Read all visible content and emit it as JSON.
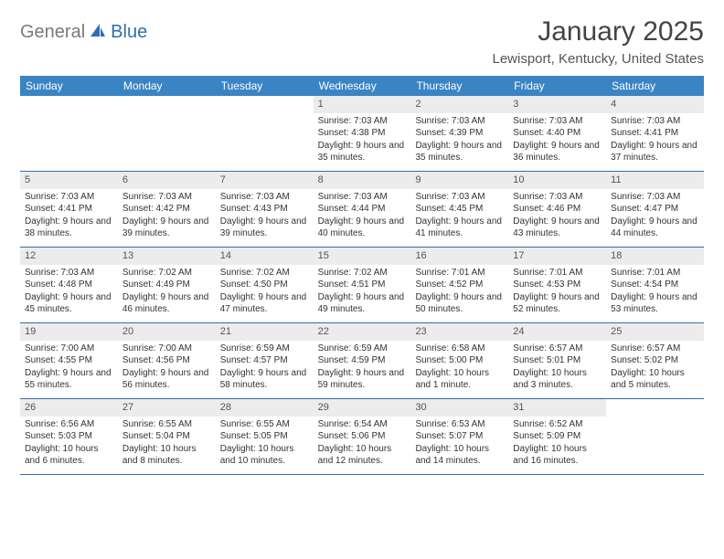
{
  "logo": {
    "part1": "General",
    "part2": "Blue"
  },
  "title": "January 2025",
  "location": "Lewisport, Kentucky, United States",
  "colors": {
    "header_bg": "#3a84c4",
    "header_text": "#ffffff",
    "border": "#2f6faf",
    "daynum_bg": "#ececec",
    "logo_gray": "#7a7a7a",
    "logo_blue": "#2f6faf"
  },
  "dayNames": [
    "Sunday",
    "Monday",
    "Tuesday",
    "Wednesday",
    "Thursday",
    "Friday",
    "Saturday"
  ],
  "weeks": [
    [
      {
        "empty": true
      },
      {
        "empty": true
      },
      {
        "empty": true
      },
      {
        "num": "1",
        "sunrise": "Sunrise: 7:03 AM",
        "sunset": "Sunset: 4:38 PM",
        "daylight": "Daylight: 9 hours and 35 minutes."
      },
      {
        "num": "2",
        "sunrise": "Sunrise: 7:03 AM",
        "sunset": "Sunset: 4:39 PM",
        "daylight": "Daylight: 9 hours and 35 minutes."
      },
      {
        "num": "3",
        "sunrise": "Sunrise: 7:03 AM",
        "sunset": "Sunset: 4:40 PM",
        "daylight": "Daylight: 9 hours and 36 minutes."
      },
      {
        "num": "4",
        "sunrise": "Sunrise: 7:03 AM",
        "sunset": "Sunset: 4:41 PM",
        "daylight": "Daylight: 9 hours and 37 minutes."
      }
    ],
    [
      {
        "num": "5",
        "sunrise": "Sunrise: 7:03 AM",
        "sunset": "Sunset: 4:41 PM",
        "daylight": "Daylight: 9 hours and 38 minutes."
      },
      {
        "num": "6",
        "sunrise": "Sunrise: 7:03 AM",
        "sunset": "Sunset: 4:42 PM",
        "daylight": "Daylight: 9 hours and 39 minutes."
      },
      {
        "num": "7",
        "sunrise": "Sunrise: 7:03 AM",
        "sunset": "Sunset: 4:43 PM",
        "daylight": "Daylight: 9 hours and 39 minutes."
      },
      {
        "num": "8",
        "sunrise": "Sunrise: 7:03 AM",
        "sunset": "Sunset: 4:44 PM",
        "daylight": "Daylight: 9 hours and 40 minutes."
      },
      {
        "num": "9",
        "sunrise": "Sunrise: 7:03 AM",
        "sunset": "Sunset: 4:45 PM",
        "daylight": "Daylight: 9 hours and 41 minutes."
      },
      {
        "num": "10",
        "sunrise": "Sunrise: 7:03 AM",
        "sunset": "Sunset: 4:46 PM",
        "daylight": "Daylight: 9 hours and 43 minutes."
      },
      {
        "num": "11",
        "sunrise": "Sunrise: 7:03 AM",
        "sunset": "Sunset: 4:47 PM",
        "daylight": "Daylight: 9 hours and 44 minutes."
      }
    ],
    [
      {
        "num": "12",
        "sunrise": "Sunrise: 7:03 AM",
        "sunset": "Sunset: 4:48 PM",
        "daylight": "Daylight: 9 hours and 45 minutes."
      },
      {
        "num": "13",
        "sunrise": "Sunrise: 7:02 AM",
        "sunset": "Sunset: 4:49 PM",
        "daylight": "Daylight: 9 hours and 46 minutes."
      },
      {
        "num": "14",
        "sunrise": "Sunrise: 7:02 AM",
        "sunset": "Sunset: 4:50 PM",
        "daylight": "Daylight: 9 hours and 47 minutes."
      },
      {
        "num": "15",
        "sunrise": "Sunrise: 7:02 AM",
        "sunset": "Sunset: 4:51 PM",
        "daylight": "Daylight: 9 hours and 49 minutes."
      },
      {
        "num": "16",
        "sunrise": "Sunrise: 7:01 AM",
        "sunset": "Sunset: 4:52 PM",
        "daylight": "Daylight: 9 hours and 50 minutes."
      },
      {
        "num": "17",
        "sunrise": "Sunrise: 7:01 AM",
        "sunset": "Sunset: 4:53 PM",
        "daylight": "Daylight: 9 hours and 52 minutes."
      },
      {
        "num": "18",
        "sunrise": "Sunrise: 7:01 AM",
        "sunset": "Sunset: 4:54 PM",
        "daylight": "Daylight: 9 hours and 53 minutes."
      }
    ],
    [
      {
        "num": "19",
        "sunrise": "Sunrise: 7:00 AM",
        "sunset": "Sunset: 4:55 PM",
        "daylight": "Daylight: 9 hours and 55 minutes."
      },
      {
        "num": "20",
        "sunrise": "Sunrise: 7:00 AM",
        "sunset": "Sunset: 4:56 PM",
        "daylight": "Daylight: 9 hours and 56 minutes."
      },
      {
        "num": "21",
        "sunrise": "Sunrise: 6:59 AM",
        "sunset": "Sunset: 4:57 PM",
        "daylight": "Daylight: 9 hours and 58 minutes."
      },
      {
        "num": "22",
        "sunrise": "Sunrise: 6:59 AM",
        "sunset": "Sunset: 4:59 PM",
        "daylight": "Daylight: 9 hours and 59 minutes."
      },
      {
        "num": "23",
        "sunrise": "Sunrise: 6:58 AM",
        "sunset": "Sunset: 5:00 PM",
        "daylight": "Daylight: 10 hours and 1 minute."
      },
      {
        "num": "24",
        "sunrise": "Sunrise: 6:57 AM",
        "sunset": "Sunset: 5:01 PM",
        "daylight": "Daylight: 10 hours and 3 minutes."
      },
      {
        "num": "25",
        "sunrise": "Sunrise: 6:57 AM",
        "sunset": "Sunset: 5:02 PM",
        "daylight": "Daylight: 10 hours and 5 minutes."
      }
    ],
    [
      {
        "num": "26",
        "sunrise": "Sunrise: 6:56 AM",
        "sunset": "Sunset: 5:03 PM",
        "daylight": "Daylight: 10 hours and 6 minutes."
      },
      {
        "num": "27",
        "sunrise": "Sunrise: 6:55 AM",
        "sunset": "Sunset: 5:04 PM",
        "daylight": "Daylight: 10 hours and 8 minutes."
      },
      {
        "num": "28",
        "sunrise": "Sunrise: 6:55 AM",
        "sunset": "Sunset: 5:05 PM",
        "daylight": "Daylight: 10 hours and 10 minutes."
      },
      {
        "num": "29",
        "sunrise": "Sunrise: 6:54 AM",
        "sunset": "Sunset: 5:06 PM",
        "daylight": "Daylight: 10 hours and 12 minutes."
      },
      {
        "num": "30",
        "sunrise": "Sunrise: 6:53 AM",
        "sunset": "Sunset: 5:07 PM",
        "daylight": "Daylight: 10 hours and 14 minutes."
      },
      {
        "num": "31",
        "sunrise": "Sunrise: 6:52 AM",
        "sunset": "Sunset: 5:09 PM",
        "daylight": "Daylight: 10 hours and 16 minutes."
      },
      {
        "empty": true
      }
    ]
  ]
}
